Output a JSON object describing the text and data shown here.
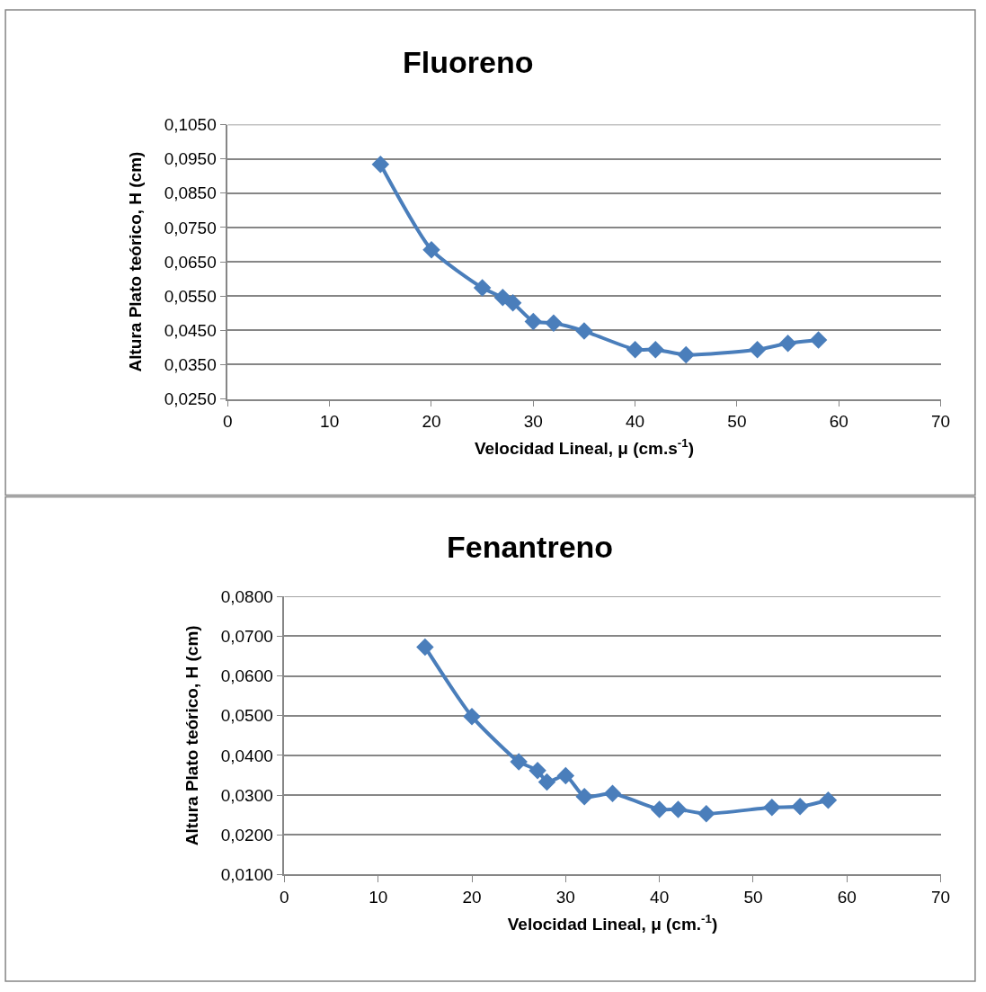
{
  "chart_data": [
    {
      "type": "line",
      "title": "Fluoreno",
      "xlabel": "Velocidad Lineal, μ (cm.s$^{-1}$)",
      "ylabel": "Altura Plato teórico, H (cm)",
      "x": [
        15,
        20,
        25,
        27,
        28,
        30,
        32,
        35,
        40,
        42,
        45,
        52,
        55,
        58
      ],
      "series": [
        {
          "color": "#4a7ebb",
          "values": [
            0.0934,
            0.0685,
            0.0574,
            0.0546,
            0.053,
            0.0476,
            0.0471,
            0.0448,
            0.0394,
            0.0394,
            0.0379,
            0.0394,
            0.0412,
            0.0422
          ]
        }
      ],
      "xlim": [
        0,
        70
      ],
      "xticks": [
        0,
        10,
        20,
        30,
        40,
        50,
        60,
        70
      ],
      "ylim": [
        0.025,
        0.105
      ],
      "yticks": [
        {
          "value": 0.025,
          "label": "0,0250"
        },
        {
          "value": 0.035,
          "label": "0,0350"
        },
        {
          "value": 0.045,
          "label": "0,0450"
        },
        {
          "value": 0.055,
          "label": "0,0550"
        },
        {
          "value": 0.065,
          "label": "0,0650"
        },
        {
          "value": 0.075,
          "label": "0,0750"
        },
        {
          "value": 0.085,
          "label": "0,0850"
        },
        {
          "value": 0.095,
          "label": "0,0950"
        },
        {
          "value": 0.105,
          "label": "0,1050"
        }
      ],
      "grid": "y",
      "marker": "diamond",
      "line_style": "solid"
    },
    {
      "type": "line",
      "title": "Fenantreno",
      "xlabel": "Velocidad Lineal, μ (cm.$^{-1}$)",
      "ylabel": "Altura Plato teórico, H (cm)",
      "x": [
        15,
        20,
        25,
        27,
        28,
        30,
        32,
        35,
        40,
        42,
        45,
        52,
        55,
        58
      ],
      "series": [
        {
          "color": "#4a7ebb",
          "values": [
            0.0673,
            0.0498,
            0.0384,
            0.0362,
            0.0333,
            0.0349,
            0.0296,
            0.0304,
            0.0264,
            0.0264,
            0.0253,
            0.0269,
            0.0271,
            0.0287
          ]
        }
      ],
      "xlim": [
        0,
        70
      ],
      "xticks": [
        0,
        10,
        20,
        30,
        40,
        50,
        60,
        70
      ],
      "ylim": [
        0.01,
        0.08
      ],
      "yticks": [
        {
          "value": 0.01,
          "label": "0,0100"
        },
        {
          "value": 0.02,
          "label": "0,0200"
        },
        {
          "value": 0.03,
          "label": "0,0300"
        },
        {
          "value": 0.04,
          "label": "0,0400"
        },
        {
          "value": 0.05,
          "label": "0,0500"
        },
        {
          "value": 0.06,
          "label": "0,0600"
        },
        {
          "value": 0.07,
          "label": "0,0700"
        },
        {
          "value": 0.08,
          "label": "0,0800"
        }
      ],
      "grid": "y",
      "marker": "diamond",
      "line_style": "solid"
    }
  ]
}
